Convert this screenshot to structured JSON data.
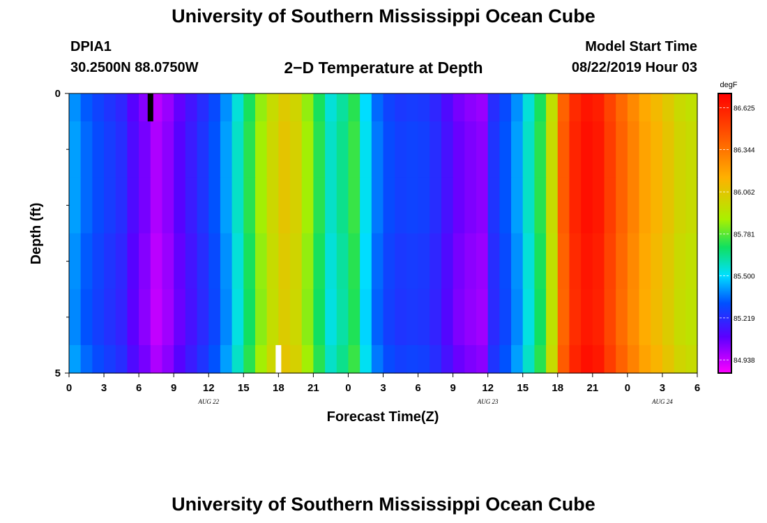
{
  "header": {
    "title": "University of Southern Mississippi Ocean Cube",
    "station": "DPIA1",
    "coords": "30.2500N 88.0750W",
    "plot_title": "2−D Temperature at Depth",
    "model_label": "Model Start Time",
    "model_time": "08/22/2019 Hour 03",
    "footer_title": "University of Southern Mississippi Ocean Cube"
  },
  "chart_data": {
    "type": "heatmap",
    "title": "2−D Temperature at Depth",
    "xlabel": "Forecast Time(Z)",
    "ylabel": "Depth (ft)",
    "x_start_hour": 0,
    "x_end_hour": 54,
    "x_tick_hours": [
      0,
      3,
      6,
      9,
      12,
      15,
      18,
      21,
      24,
      27,
      30,
      33,
      36,
      39,
      42,
      45,
      48,
      51,
      54
    ],
    "x_tick_labels": [
      "0",
      "3",
      "6",
      "9",
      "12",
      "15",
      "18",
      "21",
      "0",
      "3",
      "6",
      "9",
      "12",
      "15",
      "18",
      "21",
      "0",
      "3",
      "6"
    ],
    "date_labels": [
      {
        "text": "AUG  22",
        "hour": 12
      },
      {
        "text": "AUG  23",
        "hour": 36
      },
      {
        "text": "AUG  24",
        "hour": 51
      }
    ],
    "y_tick_labels": [
      "0",
      "5"
    ],
    "ylim": [
      0,
      5
    ],
    "y_minor_ticks": [
      1,
      2,
      3,
      4
    ],
    "depth_layers": [
      0,
      0.5,
      1.5,
      2.5,
      3.5,
      4.5
    ],
    "layer_offsets": [
      0,
      0.02,
      0.02,
      0.0,
      -0.01,
      0.02
    ],
    "hourly_base_temp": [
      85.4,
      85.33,
      85.28,
      85.24,
      85.2,
      85.1,
      85.03,
      84.95,
      85.0,
      85.08,
      85.15,
      85.22,
      85.3,
      85.4,
      85.55,
      85.7,
      85.85,
      85.97,
      86.05,
      86.0,
      85.85,
      85.7,
      85.55,
      85.62,
      85.72,
      85.5,
      85.35,
      85.28,
      85.25,
      85.26,
      85.25,
      85.2,
      85.12,
      85.05,
      85.02,
      85.0,
      85.22,
      85.3,
      85.4,
      85.55,
      85.7,
      85.95,
      86.4,
      86.58,
      86.65,
      86.62,
      86.5,
      86.38,
      86.28,
      86.18,
      86.12,
      86.05,
      85.98,
      85.95
    ],
    "markers": [
      {
        "hour": 7,
        "depth_from": 0,
        "depth_to": 0.5,
        "color": "#000000"
      },
      {
        "hour": 18,
        "depth_from": 4.5,
        "depth_to": 5,
        "color": "#ffffff"
      }
    ]
  },
  "colorbar": {
    "unit": "degF",
    "min": 84.85,
    "max": 86.72,
    "labels": [
      "86.625",
      "86.344",
      "86.062",
      "85.781",
      "85.500",
      "85.219",
      "84.938"
    ],
    "values": [
      86.625,
      86.344,
      86.062,
      85.781,
      85.5,
      85.219,
      84.938
    ]
  }
}
